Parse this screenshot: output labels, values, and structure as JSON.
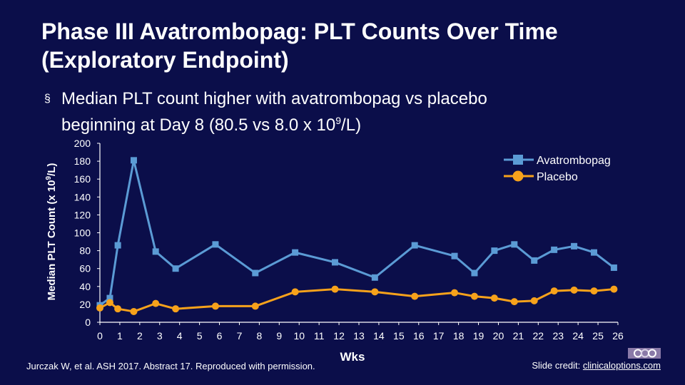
{
  "title_lines": [
    "Phase III Avatrombopag: PLT Counts Over Time",
    "(Exploratory Endpoint)"
  ],
  "bullet": {
    "marker": "§",
    "line1": "Median PLT count higher with avatrombopag vs placebo",
    "line2_pre": "beginning at Day 8 (80.5 vs 8.0 x 10",
    "line2_sup": "9",
    "line2_post": "/L)"
  },
  "citation": "Jurczak W, et al. ASH 2017. Abstract 17. Reproduced with permission.",
  "credit": {
    "label": "Slide credit: ",
    "link": "clinicaloptions.com"
  },
  "colors": {
    "background": "#0b0e4a",
    "avatrombopag": "#5b9bd5",
    "placebo": "#f7a21b",
    "text": "#ffffff"
  },
  "chart_data": {
    "type": "line",
    "xlabel": "Wks",
    "ylabel_pre": "Median PLT Count (x 10",
    "ylabel_sup": "9",
    "ylabel_post": "/L)",
    "ylim": [
      0,
      200
    ],
    "yticks": [
      0,
      20,
      40,
      60,
      80,
      100,
      120,
      140,
      160,
      180,
      200
    ],
    "xlim": [
      0,
      26
    ],
    "xticks": [
      0,
      1,
      2,
      3,
      4,
      5,
      6,
      7,
      8,
      9,
      10,
      11,
      12,
      13,
      14,
      15,
      16,
      17,
      18,
      19,
      20,
      21,
      22,
      23,
      24,
      25,
      26
    ],
    "legend_position": "top-right",
    "series": [
      {
        "name": "Avatrombopag",
        "marker": "square",
        "color": "#5b9bd5",
        "x": [
          0,
          0.5,
          0.9,
          1.7,
          2.8,
          3.8,
          5.8,
          7.8,
          9.8,
          11.8,
          13.8,
          15.8,
          17.8,
          18.8,
          19.8,
          20.8,
          21.8,
          22.8,
          23.8,
          24.8,
          25.8
        ],
        "y": [
          19,
          27,
          86,
          181,
          79,
          60,
          87,
          55,
          78,
          67,
          50,
          86,
          74,
          55,
          80,
          87,
          69,
          81,
          85,
          78,
          61
        ]
      },
      {
        "name": "Placebo",
        "marker": "circle",
        "color": "#f7a21b",
        "x": [
          0,
          0.5,
          0.9,
          1.7,
          2.8,
          3.8,
          5.8,
          7.8,
          9.8,
          11.8,
          13.8,
          15.8,
          17.8,
          18.8,
          19.8,
          20.8,
          21.8,
          22.8,
          23.8,
          24.8,
          25.8
        ],
        "y": [
          16,
          22,
          15,
          12,
          21,
          15,
          18,
          18,
          34,
          37,
          34,
          29,
          33,
          29,
          27,
          23,
          24,
          35,
          36,
          35,
          37
        ]
      }
    ]
  }
}
